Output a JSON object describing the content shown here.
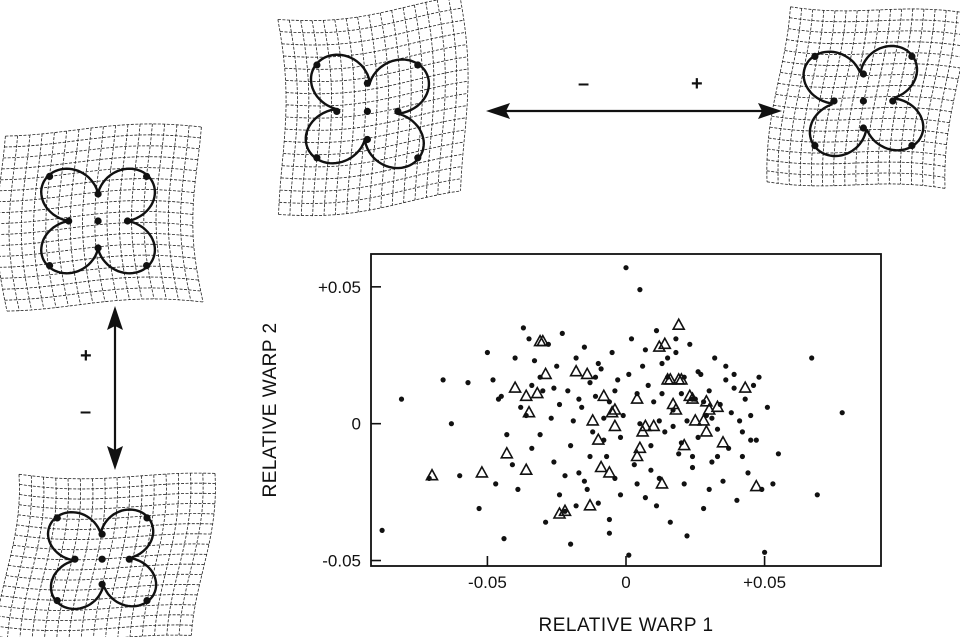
{
  "figure": {
    "signs": {
      "plus": "+",
      "minus": "–"
    },
    "grid_panels": [
      {
        "id": "warp1-negative",
        "label": "top-left"
      },
      {
        "id": "warp1-positive",
        "label": "top-right"
      },
      {
        "id": "warp2-positive",
        "label": "left-top"
      },
      {
        "id": "warp2-negative",
        "label": "left-bottom"
      }
    ]
  },
  "chart_data": {
    "type": "scatter",
    "title": "",
    "xlabel": "RELATIVE WARP 1",
    "ylabel": "RELATIVE WARP 2",
    "xlim": [
      -0.092,
      0.092
    ],
    "ylim": [
      -0.052,
      0.062
    ],
    "xticks": [
      -0.05,
      0,
      0.05
    ],
    "xtick_labels": [
      "-0.05",
      "0",
      "+0.05"
    ],
    "yticks": [
      0.05,
      0,
      -0.05
    ],
    "ytick_labels": [
      "+0.05",
      "0",
      "-0.05"
    ],
    "grid": false,
    "legend": "none",
    "series": [
      {
        "marker": "dot",
        "points": [
          [
            -0.081,
            0.009
          ],
          [
            -0.088,
            -0.039
          ],
          [
            -0.071,
            -0.02
          ],
          [
            -0.066,
            0.016
          ],
          [
            -0.063,
            0.0
          ],
          [
            -0.06,
            -0.019
          ],
          [
            -0.057,
            0.015
          ],
          [
            -0.05,
            0.026
          ],
          [
            -0.048,
            0.016
          ],
          [
            -0.046,
            0.009
          ],
          [
            -0.045,
            0.01
          ],
          [
            -0.043,
            -0.004
          ],
          [
            -0.041,
            -0.015
          ],
          [
            -0.039,
            -0.024
          ],
          [
            -0.038,
            0.006
          ],
          [
            -0.037,
            0.035
          ],
          [
            -0.035,
            0.031
          ],
          [
            -0.034,
            -0.009
          ],
          [
            -0.033,
            0.023
          ],
          [
            -0.031,
            0.017
          ],
          [
            -0.03,
            0.012
          ],
          [
            -0.029,
            -0.036
          ],
          [
            -0.028,
            0.029
          ],
          [
            -0.027,
            0.002
          ],
          [
            -0.026,
            -0.014
          ],
          [
            -0.025,
            0.021
          ],
          [
            -0.024,
            -0.026
          ],
          [
            -0.023,
            0.033
          ],
          [
            -0.022,
            -0.032
          ],
          [
            -0.021,
            0.012
          ],
          [
            -0.02,
            -0.008
          ],
          [
            -0.019,
            0.001
          ],
          [
            -0.018,
            0.024
          ],
          [
            -0.017,
            -0.018
          ],
          [
            -0.016,
            0.006
          ],
          [
            -0.015,
            0.028
          ],
          [
            -0.014,
            -0.024
          ],
          [
            -0.013,
            0.015
          ],
          [
            -0.012,
            -0.003
          ],
          [
            -0.011,
            0.01
          ],
          [
            -0.01,
            -0.029
          ],
          [
            -0.009,
            0.02
          ],
          [
            -0.008,
            0.002
          ],
          [
            -0.007,
            -0.012
          ],
          [
            -0.006,
            0.008
          ],
          [
            -0.005,
            0.026
          ],
          [
            -0.004,
            -0.02
          ],
          [
            -0.003,
            0.016
          ],
          [
            -0.002,
            -0.005
          ],
          [
            -0.001,
            0.003
          ],
          [
            0.0,
            0.057
          ],
          [
            0.001,
            -0.048
          ],
          [
            0.002,
            0.031
          ],
          [
            0.003,
            -0.015
          ],
          [
            0.004,
            0.011
          ],
          [
            0.005,
            0.0
          ],
          [
            0.006,
            0.021
          ],
          [
            0.007,
            -0.027
          ],
          [
            0.008,
            0.014
          ],
          [
            0.009,
            -0.008
          ],
          [
            0.01,
            0.008
          ],
          [
            0.011,
            0.034
          ],
          [
            0.012,
            -0.02
          ],
          [
            0.013,
            0.022
          ],
          [
            0.014,
            -0.003
          ],
          [
            0.015,
            0.017
          ],
          [
            0.016,
            -0.036
          ],
          [
            0.017,
            0.005
          ],
          [
            0.018,
            0.026
          ],
          [
            0.019,
            -0.011
          ],
          [
            0.02,
            0.011
          ],
          [
            0.021,
            -0.022
          ],
          [
            0.022,
            0.001
          ],
          [
            0.023,
            0.029
          ],
          [
            0.024,
            -0.016
          ],
          [
            0.025,
            0.009
          ],
          [
            0.026,
            -0.005
          ],
          [
            0.027,
            0.018
          ],
          [
            0.028,
            -0.031
          ],
          [
            0.029,
            0.003
          ],
          [
            0.03,
            0.012
          ],
          [
            0.031,
            -0.014
          ],
          [
            0.032,
            0.024
          ],
          [
            0.033,
            -0.002
          ],
          [
            0.034,
            0.007
          ],
          [
            0.035,
            -0.021
          ],
          [
            0.036,
            0.016
          ],
          [
            0.037,
            -0.009
          ],
          [
            0.038,
            0.004
          ],
          [
            0.039,
            0.013
          ],
          [
            0.04,
            -0.028
          ],
          [
            0.041,
            0.001
          ],
          [
            0.042,
            -0.012
          ],
          [
            0.043,
            0.009
          ],
          [
            0.044,
            -0.018
          ],
          [
            0.045,
            0.003
          ],
          [
            0.046,
            0.014
          ],
          [
            0.047,
            -0.006
          ],
          [
            0.048,
            0.017
          ],
          [
            0.049,
            -0.024
          ],
          [
            0.051,
            0.006
          ],
          [
            0.053,
            -0.022
          ],
          [
            0.055,
            -0.011
          ],
          [
            0.067,
            0.024
          ],
          [
            0.069,
            -0.026
          ],
          [
            0.078,
            0.004
          ],
          [
            0.05,
            -0.047
          ],
          [
            -0.044,
            -0.042
          ],
          [
            -0.053,
            -0.031
          ],
          [
            -0.006,
            -0.04
          ],
          [
            0.022,
            -0.041
          ],
          [
            -0.02,
            -0.044
          ],
          [
            -0.034,
            0.014
          ],
          [
            -0.017,
            0.009
          ],
          [
            0.001,
            0.018
          ],
          [
            0.009,
            -0.017
          ],
          [
            0.018,
            0.031
          ],
          [
            0.024,
            0.009
          ],
          [
            0.03,
            -0.024
          ],
          [
            -0.01,
            0.022
          ],
          [
            -0.002,
            -0.026
          ],
          [
            0.012,
            0.001
          ],
          [
            0.02,
            -0.007
          ],
          [
            0.026,
            0.019
          ],
          [
            -0.024,
            0.007
          ],
          [
            -0.031,
            -0.004
          ],
          [
            0.036,
            0.021
          ],
          [
            0.042,
            -0.003
          ],
          [
            -0.013,
            -0.012
          ],
          [
            0.004,
            -0.022
          ],
          [
            0.015,
            0.024
          ],
          [
            -0.006,
            -0.035
          ],
          [
            0.033,
            -0.012
          ],
          [
            -0.04,
            0.024
          ],
          [
            -0.026,
            0.013
          ],
          [
            0.007,
            0.027
          ],
          [
            0.028,
            0.008
          ],
          [
            -0.018,
            -0.03
          ],
          [
            0.005,
            0.049
          ],
          [
            -0.011,
            0.017
          ],
          [
            -0.022,
            -0.019
          ],
          [
            0.039,
            0.018
          ],
          [
            0.011,
            -0.03
          ],
          [
            0.017,
            -0.001
          ],
          [
            -0.036,
            0.003
          ],
          [
            -0.047,
            -0.022
          ],
          [
            0.045,
            -0.006
          ],
          [
            0.021,
            0.017
          ],
          [
            -0.004,
            0.012
          ],
          [
            0.013,
            0.011
          ],
          [
            -0.008,
            -0.006
          ],
          [
            0.031,
            0.002
          ],
          [
            -0.015,
            -0.021
          ],
          [
            0.024,
            -0.012
          ]
        ]
      },
      {
        "marker": "triangle",
        "points": [
          [
            -0.07,
            -0.019
          ],
          [
            -0.052,
            -0.018
          ],
          [
            -0.043,
            -0.011
          ],
          [
            -0.04,
            0.013
          ],
          [
            -0.036,
            0.01
          ],
          [
            -0.036,
            -0.017
          ],
          [
            -0.035,
            0.004
          ],
          [
            -0.032,
            0.011
          ],
          [
            -0.03,
            0.03
          ],
          [
            -0.029,
            0.018
          ],
          [
            -0.024,
            -0.033
          ],
          [
            -0.022,
            -0.032
          ],
          [
            -0.018,
            0.019
          ],
          [
            -0.014,
            0.018
          ],
          [
            -0.013,
            -0.03
          ],
          [
            -0.012,
            0.001
          ],
          [
            -0.01,
            -0.006
          ],
          [
            -0.009,
            -0.016
          ],
          [
            -0.008,
            0.01
          ],
          [
            -0.006,
            -0.018
          ],
          [
            -0.005,
            0.004
          ],
          [
            -0.004,
            0.005
          ],
          [
            -0.004,
            -0.001
          ],
          [
            0.004,
            0.009
          ],
          [
            0.004,
            -0.012
          ],
          [
            0.005,
            -0.009
          ],
          [
            0.007,
            -0.001
          ],
          [
            0.01,
            -0.001
          ],
          [
            0.012,
            0.028
          ],
          [
            0.014,
            0.029
          ],
          [
            0.015,
            0.016
          ],
          [
            0.016,
            0.016
          ],
          [
            0.017,
            0.007
          ],
          [
            0.018,
            0.005
          ],
          [
            0.019,
            0.036
          ],
          [
            0.019,
            0.016
          ],
          [
            0.02,
            0.016
          ],
          [
            0.021,
            -0.008
          ],
          [
            0.023,
            0.01
          ],
          [
            0.024,
            0.009
          ],
          [
            0.025,
            0.001
          ],
          [
            0.028,
            0.001
          ],
          [
            0.029,
            -0.003
          ],
          [
            0.03,
            0.005
          ],
          [
            0.033,
            0.006
          ],
          [
            0.035,
            -0.007
          ],
          [
            0.043,
            0.013
          ],
          [
            0.047,
            -0.023
          ],
          [
            0.006,
            -0.003
          ],
          [
            -0.031,
            0.03
          ],
          [
            0.013,
            -0.022
          ],
          [
            0.029,
            0.008
          ]
        ]
      }
    ]
  }
}
